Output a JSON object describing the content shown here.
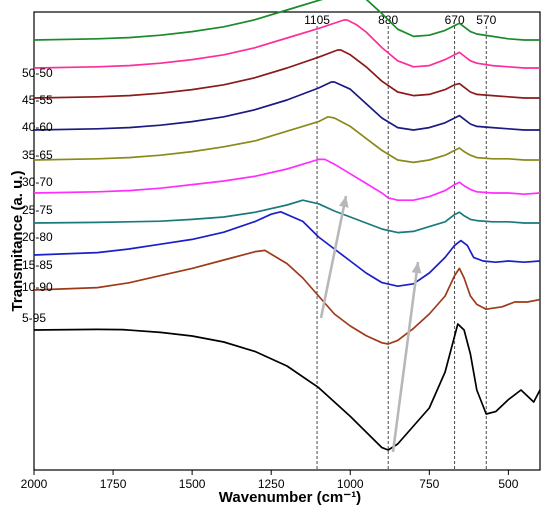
{
  "chart_data": {
    "type": "line",
    "xlabel": "Wavenumber (cm⁻¹)",
    "ylabel": "Transmitance (a. u.)",
    "xlim": [
      2000,
      400
    ],
    "x_reversed": true,
    "xticks": [
      2000,
      1750,
      1500,
      1250,
      1000,
      750,
      500
    ],
    "y_ticks_shown": false,
    "grid": false,
    "reference_lines": [
      {
        "label": "1105",
        "x": 1105
      },
      {
        "label": "880",
        "x": 880
      },
      {
        "label": "670",
        "x": 670
      },
      {
        "label": "570",
        "x": 570
      }
    ],
    "series": [
      {
        "name": "5-95",
        "color": "#000000",
        "points": [
          [
            2000,
            0.0
          ],
          [
            1800,
            0.5
          ],
          [
            1720,
            0.3
          ],
          [
            1600,
            -2
          ],
          [
            1500,
            -5
          ],
          [
            1400,
            -10
          ],
          [
            1300,
            -18
          ],
          [
            1200,
            -30
          ],
          [
            1100,
            -48
          ],
          [
            1000,
            -72
          ],
          [
            950,
            -85
          ],
          [
            900,
            -98
          ],
          [
            880,
            -100
          ],
          [
            850,
            -95
          ],
          [
            800,
            -80
          ],
          [
            750,
            -65
          ],
          [
            700,
            -35
          ],
          [
            660,
            5
          ],
          [
            640,
            0
          ],
          [
            620,
            -20
          ],
          [
            600,
            -50
          ],
          [
            570,
            -70
          ],
          [
            540,
            -68
          ],
          [
            500,
            -58
          ],
          [
            460,
            -50
          ],
          [
            420,
            -60
          ],
          [
            400,
            -50
          ]
        ]
      },
      {
        "name": "10-90",
        "color": "#9e3a1a",
        "points": [
          [
            2000,
            0.0
          ],
          [
            1800,
            2
          ],
          [
            1700,
            6
          ],
          [
            1600,
            12
          ],
          [
            1500,
            18
          ],
          [
            1400,
            25
          ],
          [
            1300,
            32
          ],
          [
            1270,
            33
          ],
          [
            1200,
            22
          ],
          [
            1150,
            10
          ],
          [
            1100,
            -5
          ],
          [
            1050,
            -20
          ],
          [
            1000,
            -30
          ],
          [
            950,
            -38
          ],
          [
            900,
            -44
          ],
          [
            880,
            -45
          ],
          [
            850,
            -42
          ],
          [
            800,
            -32
          ],
          [
            750,
            -20
          ],
          [
            700,
            -5
          ],
          [
            670,
            12
          ],
          [
            655,
            18
          ],
          [
            640,
            10
          ],
          [
            620,
            -5
          ],
          [
            600,
            -12
          ],
          [
            570,
            -16
          ],
          [
            520,
            -14
          ],
          [
            480,
            -10
          ],
          [
            440,
            -10
          ],
          [
            400,
            -8
          ]
        ]
      },
      {
        "name": "15-85",
        "color": "#1a1fc8",
        "points": [
          [
            2000,
            0.0
          ],
          [
            1800,
            2
          ],
          [
            1700,
            5
          ],
          [
            1600,
            9
          ],
          [
            1500,
            13
          ],
          [
            1400,
            19
          ],
          [
            1300,
            28
          ],
          [
            1250,
            34
          ],
          [
            1220,
            36
          ],
          [
            1150,
            28
          ],
          [
            1100,
            15
          ],
          [
            1050,
            5
          ],
          [
            1000,
            -5
          ],
          [
            950,
            -15
          ],
          [
            900,
            -23
          ],
          [
            850,
            -26
          ],
          [
            800,
            -24
          ],
          [
            750,
            -15
          ],
          [
            700,
            -2
          ],
          [
            670,
            8
          ],
          [
            650,
            12
          ],
          [
            630,
            8
          ],
          [
            610,
            -2
          ],
          [
            580,
            -5
          ],
          [
            540,
            -6
          ],
          [
            500,
            -5
          ],
          [
            450,
            -6
          ],
          [
            400,
            -5
          ]
        ]
      },
      {
        "name": "20-80",
        "color": "#1a7a7a",
        "points": [
          [
            2000,
            0.0
          ],
          [
            1800,
            0.5
          ],
          [
            1700,
            1
          ],
          [
            1600,
            1.5
          ],
          [
            1500,
            3
          ],
          [
            1400,
            5
          ],
          [
            1300,
            9
          ],
          [
            1200,
            15
          ],
          [
            1150,
            19
          ],
          [
            1100,
            16
          ],
          [
            1050,
            10
          ],
          [
            1000,
            5
          ],
          [
            950,
            0
          ],
          [
            900,
            -5
          ],
          [
            850,
            -8
          ],
          [
            800,
            -7
          ],
          [
            750,
            -3
          ],
          [
            700,
            1
          ],
          [
            670,
            7
          ],
          [
            655,
            9
          ],
          [
            640,
            6
          ],
          [
            620,
            3
          ],
          [
            600,
            2
          ],
          [
            550,
            1
          ],
          [
            500,
            1
          ],
          [
            450,
            0
          ],
          [
            400,
            0
          ]
        ]
      },
      {
        "name": "25-75",
        "color": "#ff2dff",
        "points": [
          [
            2000,
            0.0
          ],
          [
            1800,
            1
          ],
          [
            1700,
            2
          ],
          [
            1600,
            4
          ],
          [
            1500,
            7
          ],
          [
            1400,
            10
          ],
          [
            1300,
            14
          ],
          [
            1200,
            20
          ],
          [
            1150,
            24
          ],
          [
            1100,
            28
          ],
          [
            1080,
            28
          ],
          [
            1050,
            24
          ],
          [
            1000,
            16
          ],
          [
            950,
            8
          ],
          [
            900,
            0
          ],
          [
            880,
            -4
          ],
          [
            850,
            -6
          ],
          [
            800,
            -6
          ],
          [
            750,
            -3
          ],
          [
            700,
            2
          ],
          [
            670,
            7
          ],
          [
            655,
            9
          ],
          [
            640,
            6
          ],
          [
            620,
            3
          ],
          [
            600,
            1
          ],
          [
            550,
            0
          ],
          [
            500,
            0
          ],
          [
            450,
            -1
          ],
          [
            400,
            0
          ]
        ]
      },
      {
        "name": "30-70",
        "color": "#8a8a1a",
        "points": [
          [
            2000,
            0.0
          ],
          [
            1800,
            1
          ],
          [
            1700,
            2
          ],
          [
            1600,
            4
          ],
          [
            1500,
            7
          ],
          [
            1400,
            11
          ],
          [
            1300,
            16
          ],
          [
            1200,
            24
          ],
          [
            1100,
            32
          ],
          [
            1070,
            36
          ],
          [
            1050,
            35
          ],
          [
            1000,
            28
          ],
          [
            950,
            18
          ],
          [
            900,
            8
          ],
          [
            850,
            0
          ],
          [
            800,
            -2
          ],
          [
            750,
            0
          ],
          [
            700,
            4
          ],
          [
            670,
            8
          ],
          [
            655,
            10
          ],
          [
            640,
            7
          ],
          [
            620,
            4
          ],
          [
            600,
            2
          ],
          [
            550,
            1
          ],
          [
            500,
            1
          ],
          [
            450,
            0
          ],
          [
            400,
            0
          ]
        ]
      },
      {
        "name": "35-65",
        "color": "#1a1a80",
        "points": [
          [
            2000,
            0.0
          ],
          [
            1800,
            1
          ],
          [
            1700,
            2
          ],
          [
            1600,
            4
          ],
          [
            1500,
            7
          ],
          [
            1400,
            11
          ],
          [
            1300,
            17
          ],
          [
            1200,
            25
          ],
          [
            1100,
            35
          ],
          [
            1060,
            40
          ],
          [
            1050,
            40
          ],
          [
            1000,
            34
          ],
          [
            950,
            22
          ],
          [
            900,
            10
          ],
          [
            850,
            2
          ],
          [
            800,
            0
          ],
          [
            750,
            2
          ],
          [
            700,
            6
          ],
          [
            670,
            10
          ],
          [
            655,
            12
          ],
          [
            640,
            9
          ],
          [
            620,
            5
          ],
          [
            600,
            3
          ],
          [
            550,
            2
          ],
          [
            500,
            1
          ],
          [
            450,
            0
          ],
          [
            400,
            0
          ]
        ]
      },
      {
        "name": "40-60",
        "color": "#8b1a1a",
        "points": [
          [
            2000,
            0.0
          ],
          [
            1800,
            1
          ],
          [
            1700,
            2
          ],
          [
            1600,
            4
          ],
          [
            1500,
            7
          ],
          [
            1400,
            11
          ],
          [
            1300,
            17
          ],
          [
            1200,
            25
          ],
          [
            1100,
            34
          ],
          [
            1040,
            40
          ],
          [
            1030,
            40
          ],
          [
            1000,
            36
          ],
          [
            950,
            26
          ],
          [
            900,
            14
          ],
          [
            850,
            5
          ],
          [
            800,
            2
          ],
          [
            750,
            3
          ],
          [
            700,
            7
          ],
          [
            670,
            11
          ],
          [
            655,
            12
          ],
          [
            640,
            9
          ],
          [
            620,
            5
          ],
          [
            600,
            3
          ],
          [
            550,
            2
          ],
          [
            500,
            1
          ],
          [
            450,
            0
          ],
          [
            400,
            0
          ]
        ]
      },
      {
        "name": "45-55",
        "color": "#ff2d9a",
        "points": [
          [
            2000,
            0.0
          ],
          [
            1800,
            1
          ],
          [
            1700,
            2
          ],
          [
            1600,
            4
          ],
          [
            1500,
            7
          ],
          [
            1400,
            11
          ],
          [
            1300,
            17
          ],
          [
            1200,
            25
          ],
          [
            1100,
            33
          ],
          [
            1020,
            40
          ],
          [
            1010,
            40
          ],
          [
            980,
            36
          ],
          [
            950,
            30
          ],
          [
            900,
            17
          ],
          [
            850,
            6
          ],
          [
            800,
            1
          ],
          [
            750,
            2
          ],
          [
            700,
            7
          ],
          [
            670,
            11
          ],
          [
            655,
            13
          ],
          [
            640,
            10
          ],
          [
            620,
            6
          ],
          [
            600,
            4
          ],
          [
            550,
            2
          ],
          [
            500,
            1
          ],
          [
            450,
            0
          ],
          [
            400,
            0
          ]
        ]
      },
      {
        "name": "50-50",
        "color": "#1a8a2a",
        "points": [
          [
            2000,
            0.0
          ],
          [
            1800,
            1
          ],
          [
            1700,
            2
          ],
          [
            1600,
            4
          ],
          [
            1500,
            7
          ],
          [
            1400,
            11
          ],
          [
            1300,
            17
          ],
          [
            1200,
            25
          ],
          [
            1100,
            33
          ],
          [
            1010,
            40
          ],
          [
            1000,
            40
          ],
          [
            950,
            34
          ],
          [
            900,
            22
          ],
          [
            850,
            9
          ],
          [
            800,
            3
          ],
          [
            750,
            4
          ],
          [
            700,
            8
          ],
          [
            670,
            12
          ],
          [
            655,
            14
          ],
          [
            640,
            11
          ],
          [
            620,
            7
          ],
          [
            600,
            5
          ],
          [
            550,
            3
          ],
          [
            500,
            1
          ],
          [
            450,
            0
          ],
          [
            400,
            0
          ]
        ]
      }
    ]
  },
  "arrow_color": "#b8b8b8"
}
